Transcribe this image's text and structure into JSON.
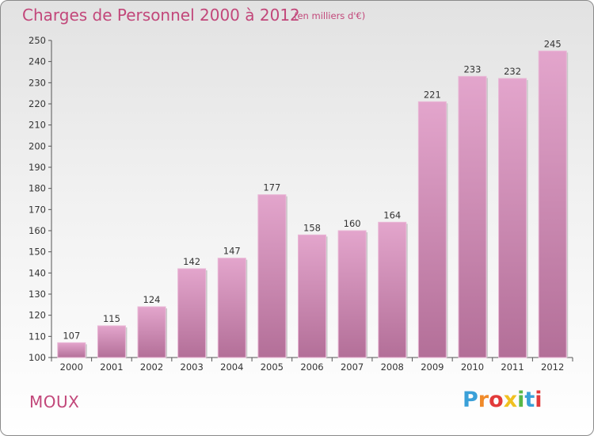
{
  "header": {
    "title": "Charges de Personnel 2000 à 2012",
    "subtitle": "(en milliers d'€)"
  },
  "footer": {
    "commune": "MOUX",
    "logo_text": "Proxiti"
  },
  "colors": {
    "bar_top": "#e3a5cc",
    "bar_bottom": "#b36f98",
    "title": "#c2477a",
    "logo": [
      "#3aa0d8",
      "#f08a2a",
      "#e23a3a",
      "#f0c020",
      "#58b848",
      "#3aa0d8",
      "#e23a3a"
    ]
  },
  "chart_data": {
    "type": "bar",
    "title": "Charges de Personnel 2000 à 2012",
    "subtitle": "(en milliers d'€)",
    "categories": [
      "2000",
      "2001",
      "2002",
      "2003",
      "2004",
      "2005",
      "2006",
      "2007",
      "2008",
      "2009",
      "2010",
      "2011",
      "2012"
    ],
    "values": [
      107,
      115,
      124,
      142,
      147,
      177,
      158,
      160,
      164,
      221,
      233,
      232,
      245
    ],
    "ylim": [
      100,
      250
    ],
    "yticks": [
      100,
      110,
      120,
      130,
      140,
      150,
      160,
      170,
      180,
      190,
      200,
      210,
      220,
      230,
      240,
      250
    ],
    "grid": false,
    "legend": "none"
  }
}
